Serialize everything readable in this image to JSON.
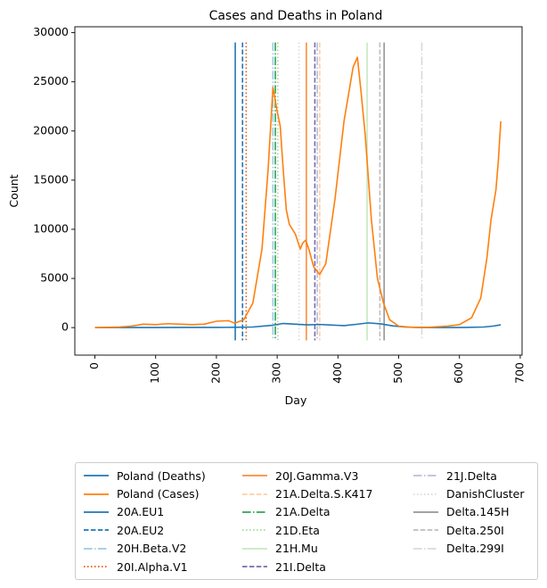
{
  "chart_data": {
    "type": "line",
    "title": "Cases and Deaths in Poland",
    "xlabel": "Day",
    "ylabel": "Count",
    "xlim": [
      -33,
      703
    ],
    "ylim": [
      -2800,
      30600
    ],
    "xticks": [
      0,
      100,
      200,
      300,
      400,
      500,
      600,
      700
    ],
    "yticks": [
      0,
      5000,
      10000,
      15000,
      20000,
      25000,
      30000
    ],
    "grid": false,
    "legend_placement": "below",
    "series": [
      {
        "name": "Poland (Deaths)",
        "color": "#1f77b4",
        "x": [
          0,
          50,
          100,
          150,
          200,
          230,
          260,
          290,
          310,
          330,
          350,
          370,
          390,
          410,
          430,
          450,
          470,
          490,
          510,
          530,
          550,
          580,
          610,
          640,
          655,
          668
        ],
        "y": [
          0,
          5,
          10,
          15,
          20,
          30,
          60,
          220,
          420,
          350,
          280,
          320,
          260,
          200,
          330,
          480,
          380,
          180,
          60,
          20,
          10,
          10,
          15,
          60,
          150,
          280
        ]
      },
      {
        "name": "Poland (Cases)",
        "color": "#ff7f0e",
        "x": [
          0,
          40,
          60,
          80,
          100,
          120,
          140,
          160,
          180,
          200,
          220,
          230,
          245,
          260,
          275,
          285,
          293,
          300,
          305,
          310,
          315,
          320,
          330,
          338,
          342,
          347,
          352,
          360,
          370,
          380,
          395,
          410,
          425,
          432,
          438,
          445,
          455,
          465,
          475,
          485,
          500,
          520,
          550,
          580,
          600,
          620,
          635,
          645,
          652,
          660,
          664,
          668
        ],
        "y": [
          0,
          50,
          150,
          350,
          300,
          400,
          350,
          300,
          350,
          650,
          700,
          450,
          800,
          2500,
          8000,
          16000,
          24400,
          22000,
          20500,
          16000,
          12000,
          10500,
          9500,
          8000,
          8600,
          8900,
          8000,
          6200,
          5400,
          6500,
          13000,
          21000,
          26500,
          27500,
          24000,
          19500,
          11000,
          5000,
          2500,
          800,
          150,
          30,
          30,
          150,
          300,
          1000,
          3000,
          7000,
          11000,
          14000,
          17000,
          21000
        ]
      }
    ],
    "vlines": [
      {
        "name": "20A.EU1",
        "x": 231,
        "color": "#1f77b4",
        "style": "solid"
      },
      {
        "name": "20A.EU2",
        "x": 243,
        "color": "#1f77b4",
        "style": "dashed"
      },
      {
        "name": "20H.Beta.V2",
        "x": 293,
        "color": "#9ecae1",
        "style": "dashdot"
      },
      {
        "name": "20I.Alpha.V1",
        "x": 249,
        "color": "#e6550d",
        "style": "dotted"
      },
      {
        "name": "20J.Gamma.V3",
        "x": 348,
        "color": "#fd8d3c",
        "style": "solid"
      },
      {
        "name": "21A.Delta.S.K417",
        "x": 370,
        "color": "#fdd0a2",
        "style": "dashed"
      },
      {
        "name": "21A.Delta",
        "x": 297,
        "color": "#31a354",
        "style": "dashdot"
      },
      {
        "name": "21D.Eta",
        "x": 301,
        "color": "#a1d99b",
        "style": "dotted"
      },
      {
        "name": "21H.Mu",
        "x": 448,
        "color": "#c7e9c0",
        "style": "solid"
      },
      {
        "name": "21I.Delta",
        "x": 362,
        "color": "#756bb1",
        "style": "dashed"
      },
      {
        "name": "21J.Delta",
        "x": 366,
        "color": "#bcbddc",
        "style": "dashdot"
      },
      {
        "name": "DanishCluster",
        "x": 336,
        "color": "#d9d9d9",
        "style": "dotted"
      },
      {
        "name": "Delta.145H",
        "x": 476,
        "color": "#969696",
        "style": "solid"
      },
      {
        "name": "Delta.250I",
        "x": 469,
        "color": "#bdbdbd",
        "style": "dashed"
      },
      {
        "name": "Delta.299I",
        "x": 538,
        "color": "#d9d9d9",
        "style": "dashdot"
      }
    ]
  }
}
